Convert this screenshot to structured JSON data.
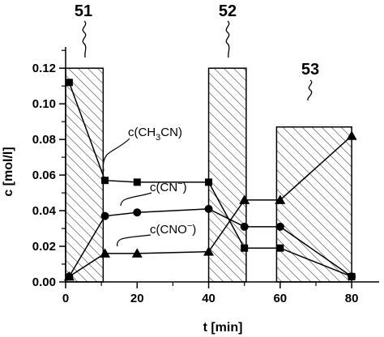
{
  "chart_data": {
    "type": "line",
    "xlabel": "t [min]",
    "ylabel": "c [mol/l]",
    "xlim": [
      0,
      87
    ],
    "ylim": [
      0,
      0.131
    ],
    "x_ticks": [
      0,
      20,
      40,
      60,
      80
    ],
    "x_tick_labels": [
      "0",
      "20",
      "40",
      "60",
      "80"
    ],
    "y_ticks": [
      0,
      0.02,
      0.04,
      0.06,
      0.08,
      0.1,
      0.12
    ],
    "y_tick_labels": [
      "0.00",
      "0.02",
      "0.04",
      "0.06",
      "0.08",
      "0.10",
      "0.12"
    ],
    "grid": false,
    "series": [
      {
        "name": "c(CH3CN)",
        "marker": "square",
        "x": [
          1,
          11,
          20,
          40,
          50,
          60,
          80
        ],
        "y": [
          0.112,
          0.057,
          0.056,
          0.056,
          0.019,
          0.019,
          0.003
        ]
      },
      {
        "name": "c(CN−)",
        "marker": "circle",
        "x": [
          1,
          11,
          20,
          40,
          50,
          60,
          80
        ],
        "y": [
          0.003,
          0.037,
          0.039,
          0.041,
          0.031,
          0.031,
          0.003
        ]
      },
      {
        "name": "c(CNO−)",
        "marker": "triangle",
        "x": [
          1,
          11,
          20,
          40,
          50,
          60,
          80
        ],
        "y": [
          0.003,
          0.016,
          0.016,
          0.017,
          0.046,
          0.046,
          0.082
        ]
      }
    ],
    "regions": [
      {
        "label": "51",
        "x_start": 0,
        "x_end": 10.5,
        "top": 0.12
      },
      {
        "label": "52",
        "x_start": 40,
        "x_end": 50.5,
        "top": 0.12
      },
      {
        "label": "53",
        "x_start": 59,
        "x_end": 80,
        "top": 0.087
      }
    ],
    "annotations": {
      "ch3cn": {
        "prefix": "c(CH",
        "sub1": "3",
        "mid": "CN",
        "suffix": ")"
      },
      "cn": {
        "base": "c(CN",
        "sup": "−",
        "suffix": ")"
      },
      "cno": {
        "base": "c(CNO",
        "sup": "−",
        "suffix": ")"
      }
    }
  }
}
